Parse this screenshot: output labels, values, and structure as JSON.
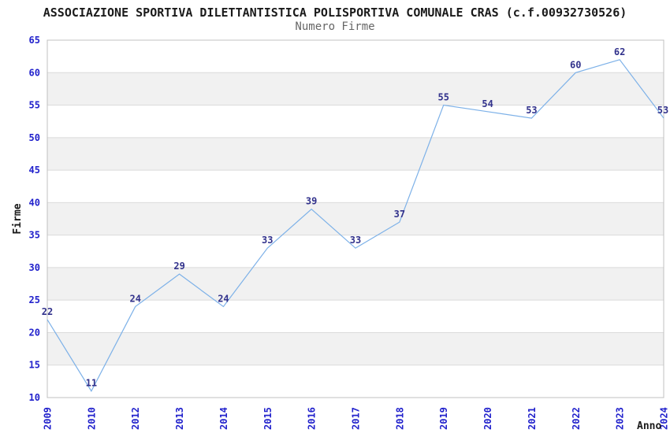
{
  "chart_data": {
    "type": "line",
    "title": "ASSOCIAZIONE SPORTIVA DILETTANTISTICA POLISPORTIVA COMUNALE CRAS (c.f.00932730526)",
    "subtitle": "Numero Firme",
    "xlabel": "Anno",
    "ylabel": "Firme",
    "categories": [
      "2009",
      "2010",
      "2012",
      "2013",
      "2014",
      "2015",
      "2016",
      "2017",
      "2018",
      "2019",
      "2020",
      "2021",
      "2022",
      "2023",
      "2024"
    ],
    "values": [
      22,
      11,
      24,
      29,
      24,
      33,
      39,
      33,
      37,
      55,
      54,
      53,
      60,
      62,
      53
    ],
    "data_labels_visible": true,
    "ylim": [
      10,
      65
    ],
    "ytick_step": 5,
    "yticks": [
      10,
      15,
      20,
      25,
      30,
      35,
      40,
      45,
      50,
      55,
      60,
      65
    ],
    "grid": "horizontal",
    "background_bands": "alternating",
    "legend_position": "none",
    "markers": "none",
    "colors": {
      "line": "#7db1e8",
      "tick_label": "#2222cc",
      "data_label": "#32328c",
      "band": "#f1f1f1",
      "grid": "#dbdbdb",
      "border": "#c0c0c0",
      "title": "#1a1a1a",
      "subtitle": "#666666",
      "axis_label": "#1a1a1a",
      "background": "#ffffff"
    }
  }
}
